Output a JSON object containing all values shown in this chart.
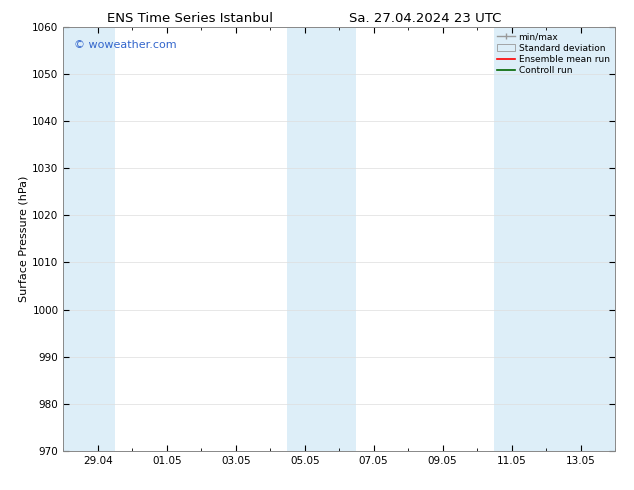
{
  "title_left": "ENS Time Series Istanbul",
  "title_right": "Sa. 27.04.2024 23 UTC",
  "ylabel": "Surface Pressure (hPa)",
  "ylim": [
    970,
    1060
  ],
  "yticks": [
    970,
    980,
    990,
    1000,
    1010,
    1020,
    1030,
    1040,
    1050,
    1060
  ],
  "xlim": [
    0,
    16
  ],
  "xtick_positions": [
    1,
    3,
    5,
    7,
    9,
    11,
    13,
    15
  ],
  "xtick_labels": [
    "29.04",
    "01.05",
    "03.05",
    "05.05",
    "07.05",
    "09.05",
    "11.05",
    "13.05"
  ],
  "shaded_bands": [
    {
      "start": 0.0,
      "end": 1.5
    },
    {
      "start": 6.5,
      "end": 8.5
    },
    {
      "start": 12.5,
      "end": 16.0
    }
  ],
  "shade_color": "#ddeef8",
  "watermark": "© woweather.com",
  "watermark_color": "#3366cc",
  "bg_color": "#ffffff",
  "legend_entries": [
    "min/max",
    "Standard deviation",
    "Ensemble mean run",
    "Controll run"
  ],
  "legend_colors_line": [
    "#999999",
    "#bbccdd",
    "#ff0000",
    "#006600"
  ],
  "grid_color": "#dddddd",
  "title_fontsize": 9.5,
  "ylabel_fontsize": 8,
  "tick_fontsize": 7.5,
  "watermark_fontsize": 8,
  "legend_fontsize": 6.5
}
